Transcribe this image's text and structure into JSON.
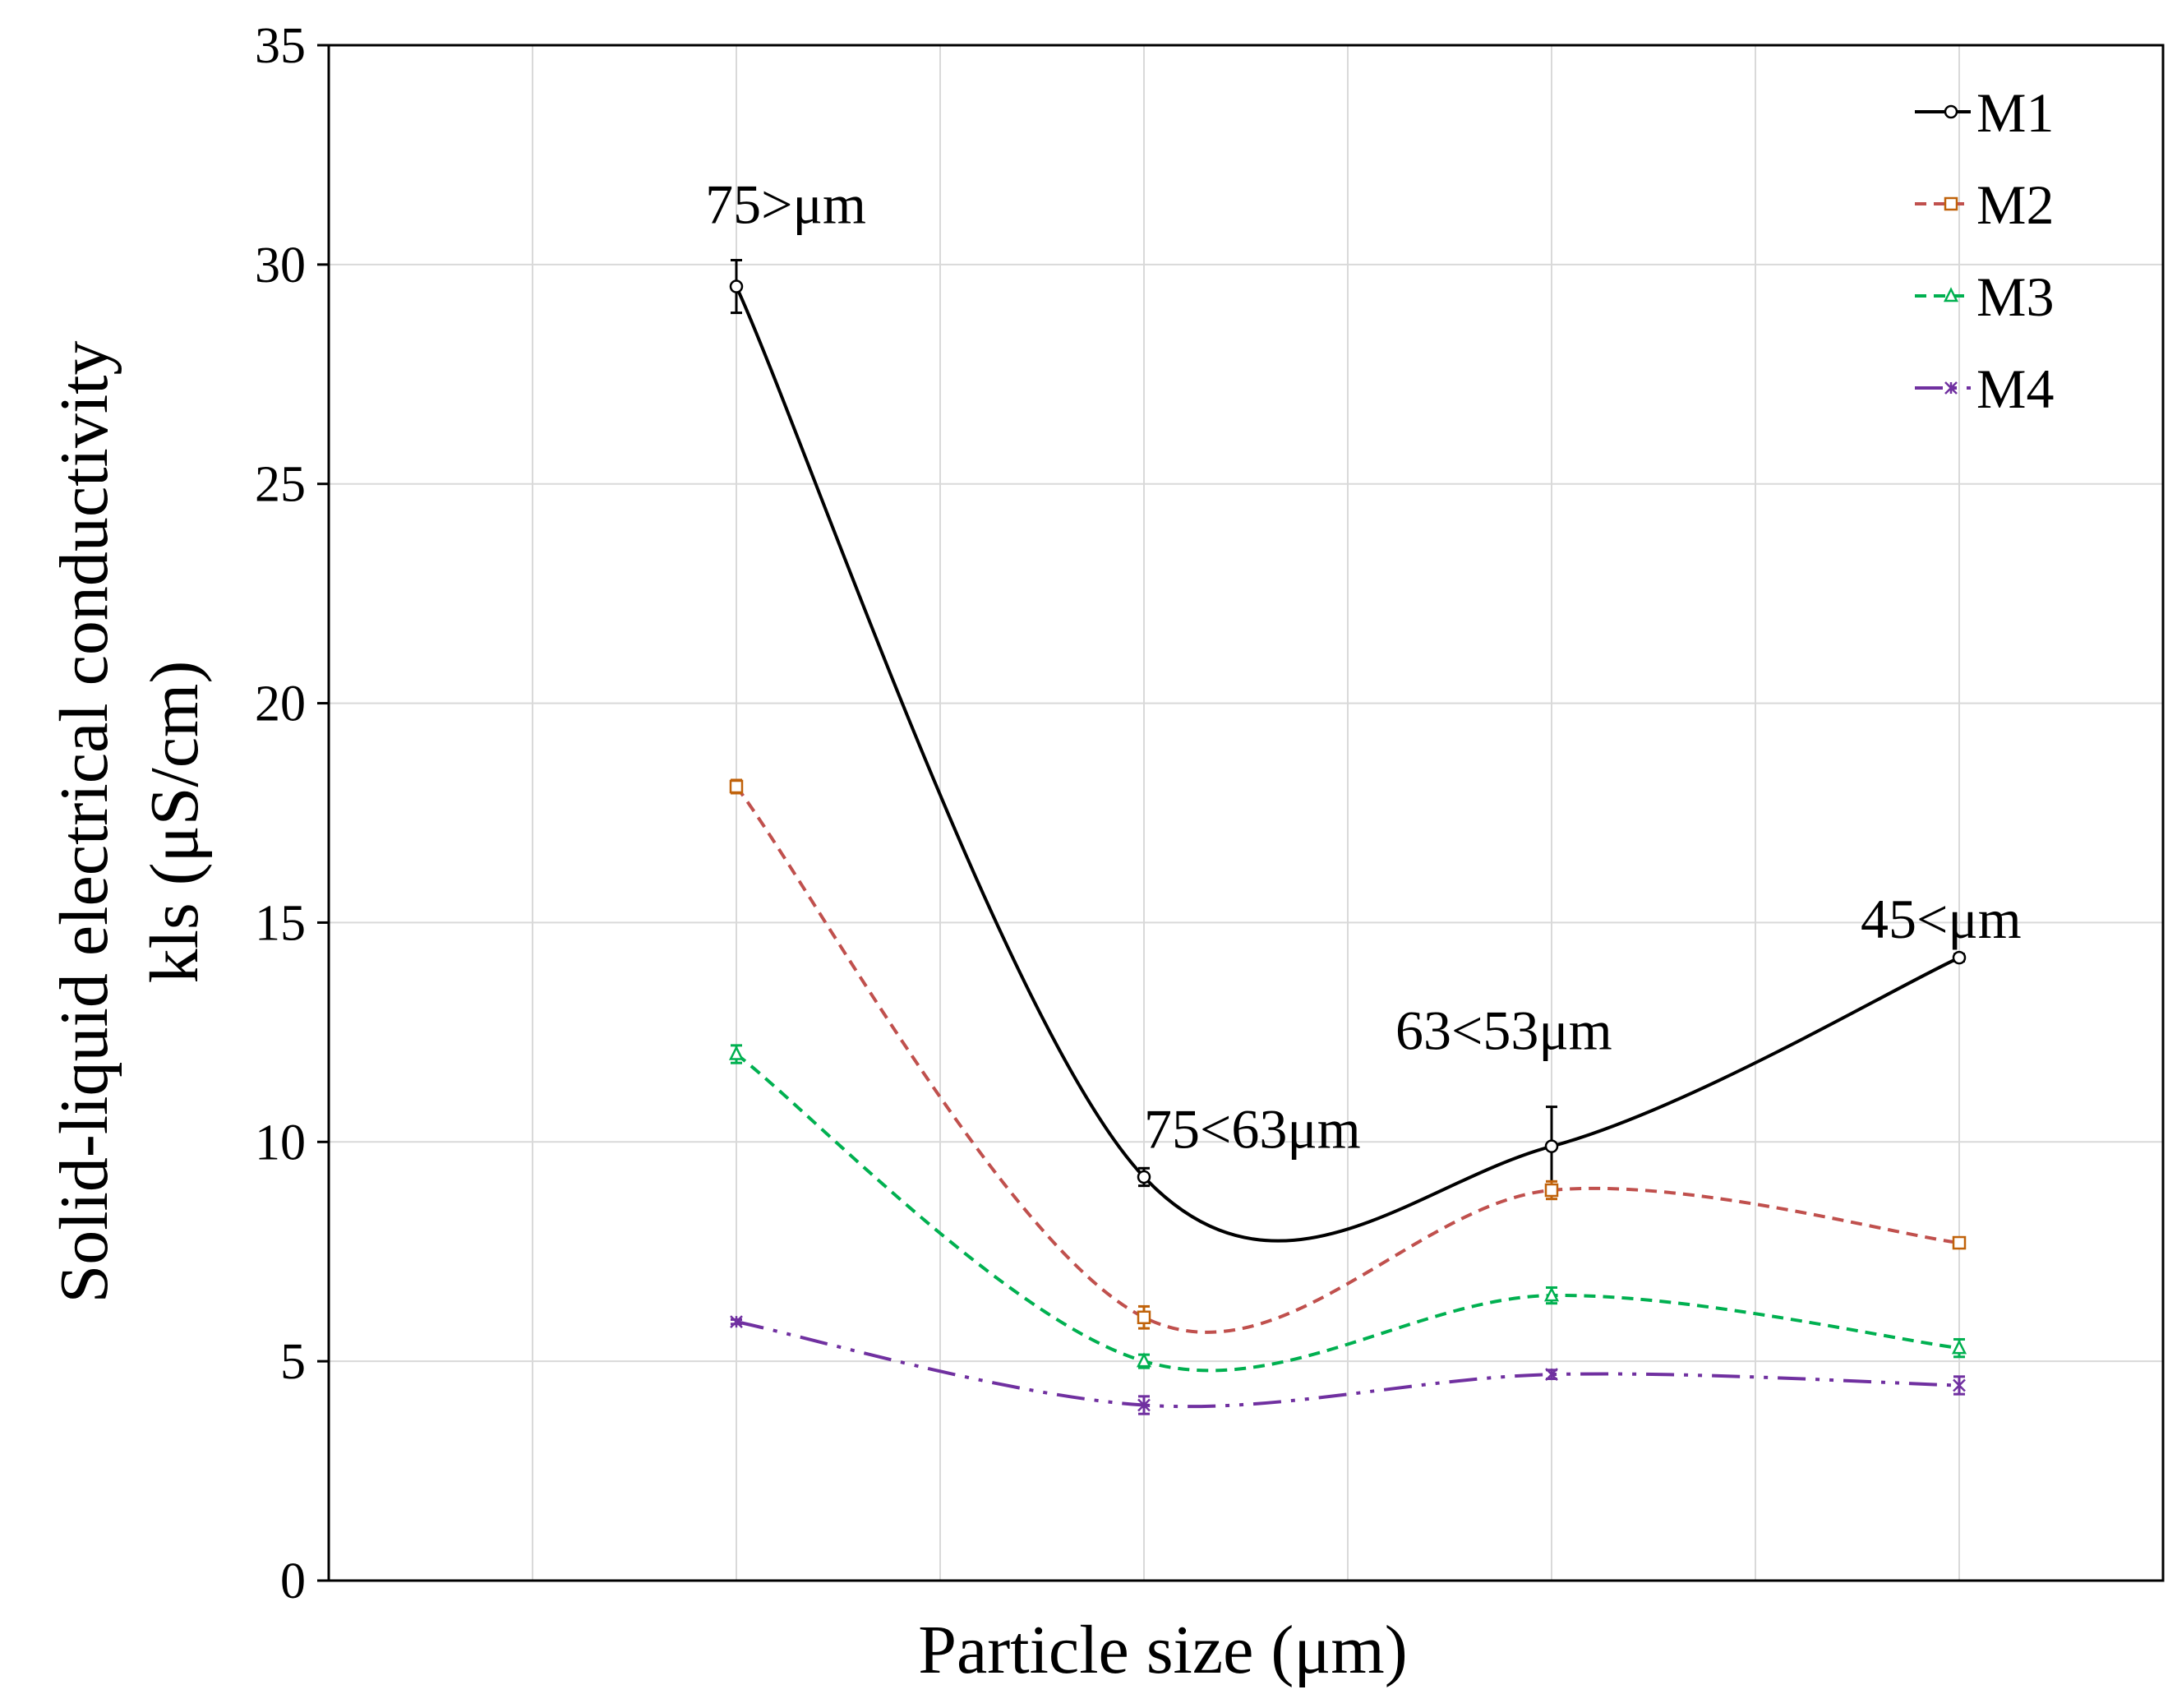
{
  "chart_data": {
    "type": "line",
    "xlabel": "Particle size (μm)",
    "ylabel_lines": [
      "Solid-liquid electrical conductivity",
      "kls (μS/cm)"
    ],
    "ylim": [
      0,
      35
    ],
    "yticks": [
      0,
      5,
      10,
      15,
      20,
      25,
      30,
      35
    ],
    "grid": true,
    "legend_position": "top-right",
    "categories": [
      "75>μm",
      "75<63μm",
      "63<53μm",
      "45<μm"
    ],
    "series": [
      {
        "name": "M1",
        "color": "#000000",
        "dash": "solid",
        "marker": "circle",
        "values": [
          29.5,
          9.2,
          9.9,
          14.2
        ],
        "errors": [
          0.6,
          0.2,
          0.9,
          0.08
        ]
      },
      {
        "name": "M2",
        "color": "#c0504d",
        "marker_color": "#c0620a",
        "dash": "dashed",
        "marker": "square",
        "values": [
          18.1,
          6.0,
          8.9,
          7.7
        ],
        "errors": [
          0.15,
          0.25,
          0.2,
          0.08
        ]
      },
      {
        "name": "M3",
        "color": "#00b050",
        "dash": "dashed",
        "marker": "triangle",
        "values": [
          12.0,
          5.0,
          6.5,
          5.3
        ],
        "errors": [
          0.2,
          0.15,
          0.18,
          0.2
        ]
      },
      {
        "name": "M4",
        "color": "#7030a0",
        "dash": "dash-dot-dot",
        "marker": "star",
        "values": [
          5.9,
          4.0,
          4.7,
          4.45
        ],
        "errors": [
          0.05,
          0.2,
          0.1,
          0.2
        ]
      }
    ]
  }
}
